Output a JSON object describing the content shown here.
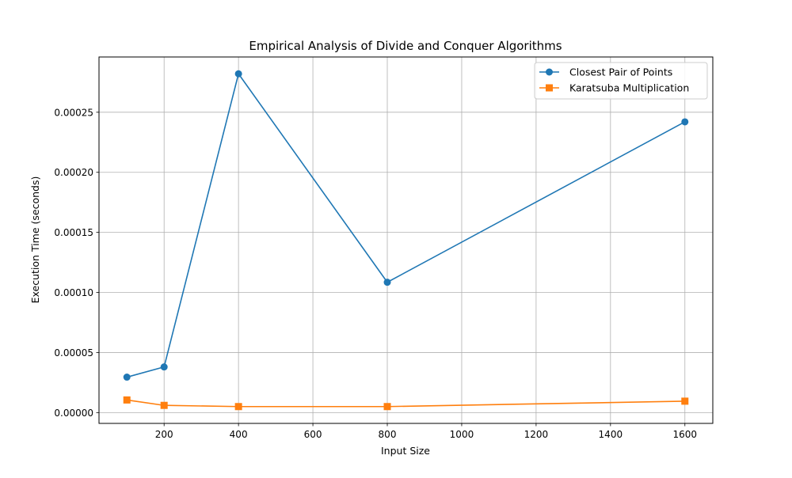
{
  "chart_data": {
    "type": "line",
    "title": "Empirical Analysis of Divide and Conquer Algorithms",
    "xlabel": "Input Size",
    "ylabel": "Execution Time (seconds)",
    "x": [
      100,
      200,
      400,
      800,
      1600
    ],
    "xlim": [
      25,
      1675
    ],
    "ylim": [
      -9e-06,
      0.000296
    ],
    "xticks": [
      200,
      400,
      600,
      800,
      1000,
      1200,
      1400,
      1600
    ],
    "xtick_labels": [
      "200",
      "400",
      "600",
      "800",
      "1000",
      "1200",
      "1400",
      "1600"
    ],
    "yticks": [
      0,
      5e-05,
      0.0001,
      0.00015,
      0.0002,
      0.00025
    ],
    "ytick_labels": [
      "0.00000",
      "0.00005",
      "0.00010",
      "0.00015",
      "0.00020",
      "0.00025"
    ],
    "grid": true,
    "legend_position": "top-right",
    "series": [
      {
        "name": "Closest Pair of Points",
        "color": "#1f77b4",
        "marker": "circle",
        "values": [
          2.95e-05,
          3.8e-05,
          0.000282,
          0.0001085,
          0.000242
        ]
      },
      {
        "name": "Karatsuba Multiplication",
        "color": "#ff7f0e",
        "marker": "square",
        "values": [
          1.05e-05,
          6e-06,
          5e-06,
          5e-06,
          9.5e-06
        ]
      }
    ]
  }
}
